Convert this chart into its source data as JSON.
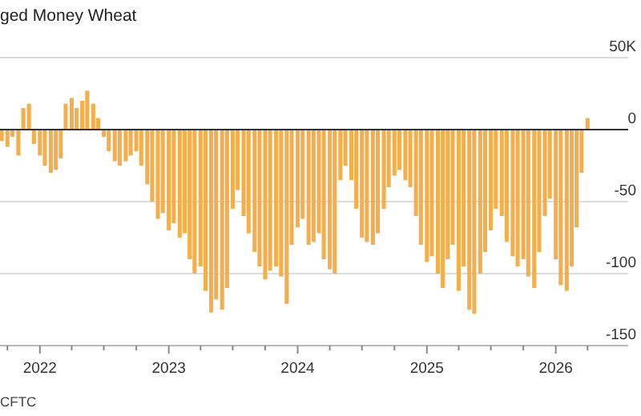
{
  "chart_data": {
    "type": "bar",
    "title": "ged Money Wheat",
    "color": "#f4ae4c",
    "x": [
      "2021-09-15",
      "2021-10-01",
      "2021-10-15",
      "2021-11-01",
      "2021-11-15",
      "2021-12-01",
      "2021-12-15",
      "2022-01-01",
      "2022-01-15",
      "2022-02-01",
      "2022-02-15",
      "2022-03-01",
      "2022-03-15",
      "2022-04-01",
      "2022-04-15",
      "2022-05-01",
      "2022-05-15",
      "2022-06-01",
      "2022-06-15",
      "2022-07-01",
      "2022-07-15",
      "2022-08-01",
      "2022-08-15",
      "2022-09-01",
      "2022-09-15",
      "2022-10-01",
      "2022-10-15",
      "2022-11-01",
      "2022-11-15",
      "2022-12-01",
      "2022-12-15",
      "2023-01-01",
      "2023-01-15",
      "2023-02-01",
      "2023-02-15",
      "2023-03-01",
      "2023-03-15",
      "2023-04-01",
      "2023-04-15",
      "2023-05-01",
      "2023-05-15",
      "2023-06-01",
      "2023-06-15",
      "2023-07-01",
      "2023-07-15",
      "2023-08-01",
      "2023-08-15",
      "2023-09-01",
      "2023-09-15",
      "2023-10-01",
      "2023-10-15",
      "2023-11-01",
      "2023-11-15",
      "2023-12-01",
      "2023-12-15",
      "2024-01-01",
      "2024-01-15",
      "2024-02-01",
      "2024-02-15",
      "2024-03-01",
      "2024-03-15",
      "2024-04-01",
      "2024-04-15",
      "2024-05-01",
      "2024-05-15",
      "2024-06-01",
      "2024-06-15",
      "2024-07-01",
      "2024-07-15",
      "2024-08-01",
      "2024-08-15",
      "2024-09-01",
      "2024-09-15",
      "2024-10-01",
      "2024-10-15",
      "2024-11-01",
      "2024-11-15",
      "2024-12-01",
      "2024-12-15",
      "2025-01-01",
      "2025-01-15",
      "2025-02-01",
      "2025-02-15",
      "2025-03-01",
      "2025-03-15",
      "2025-04-01",
      "2025-04-15",
      "2025-05-01",
      "2025-05-15",
      "2025-06-01",
      "2025-06-15",
      "2025-07-01",
      "2025-07-15",
      "2025-08-01",
      "2025-08-15",
      "2025-09-01",
      "2025-09-15",
      "2025-10-01",
      "2025-10-15",
      "2025-11-01",
      "2025-11-15",
      "2025-12-01",
      "2025-12-15",
      "2026-01-01",
      "2026-01-15",
      "2026-02-01",
      "2026-02-15",
      "2026-03-01",
      "2026-03-15",
      "2026-04-01"
    ],
    "values": [
      -8,
      -12,
      -5,
      -18,
      15,
      18,
      -10,
      -18,
      -25,
      -30,
      -28,
      -20,
      18,
      22,
      15,
      20,
      27,
      18,
      8,
      -5,
      -15,
      -22,
      -25,
      -22,
      -18,
      -15,
      -25,
      -38,
      -50,
      -62,
      -58,
      -70,
      -65,
      -75,
      -72,
      -90,
      -100,
      -95,
      -112,
      -127,
      -118,
      -125,
      -110,
      -55,
      -42,
      -60,
      -72,
      -85,
      -95,
      -104,
      -98,
      -95,
      -102,
      -121,
      -80,
      -68,
      -62,
      -80,
      -78,
      -72,
      -90,
      -97,
      -100,
      -35,
      -25,
      -35,
      -55,
      -75,
      -78,
      -80,
      -72,
      -55,
      -40,
      -32,
      -28,
      -35,
      -40,
      -60,
      -80,
      -92,
      -88,
      -100,
      -110,
      -90,
      -80,
      -112,
      -95,
      -125,
      -128,
      -100,
      -85,
      -70,
      -55,
      -60,
      -78,
      -88,
      -95,
      -90,
      -102,
      -110,
      -85,
      -60,
      -48,
      -90,
      -108,
      -112,
      -95,
      -68,
      -30,
      8
    ],
    "xlim": [
      "2021-09-10",
      "2026-07-25"
    ],
    "xticks": [
      {
        "value": "2021-10-01",
        "label": null
      },
      {
        "value": "2022-01-01",
        "label": "2022"
      },
      {
        "value": "2022-04-01",
        "label": null
      },
      {
        "value": "2022-07-01",
        "label": null
      },
      {
        "value": "2022-10-01",
        "label": null
      },
      {
        "value": "2023-01-01",
        "label": "2023"
      },
      {
        "value": "2023-04-01",
        "label": null
      },
      {
        "value": "2023-07-01",
        "label": null
      },
      {
        "value": "2023-10-01",
        "label": null
      },
      {
        "value": "2024-01-01",
        "label": "2024"
      },
      {
        "value": "2024-04-01",
        "label": null
      },
      {
        "value": "2024-07-01",
        "label": null
      },
      {
        "value": "2024-10-01",
        "label": null
      },
      {
        "value": "2025-01-01",
        "label": "2025"
      },
      {
        "value": "2025-04-01",
        "label": null
      },
      {
        "value": "2025-07-01",
        "label": null
      },
      {
        "value": "2025-10-01",
        "label": null
      },
      {
        "value": "2026-01-01",
        "label": "2026"
      },
      {
        "value": "2026-04-01",
        "label": null
      }
    ],
    "ylim": [
      -150,
      50
    ],
    "yticks": [
      {
        "value": 50,
        "label": "50K"
      },
      0,
      -50,
      -100,
      -150
    ],
    "grid": "y",
    "annotations": [
      "CFTC"
    ]
  }
}
